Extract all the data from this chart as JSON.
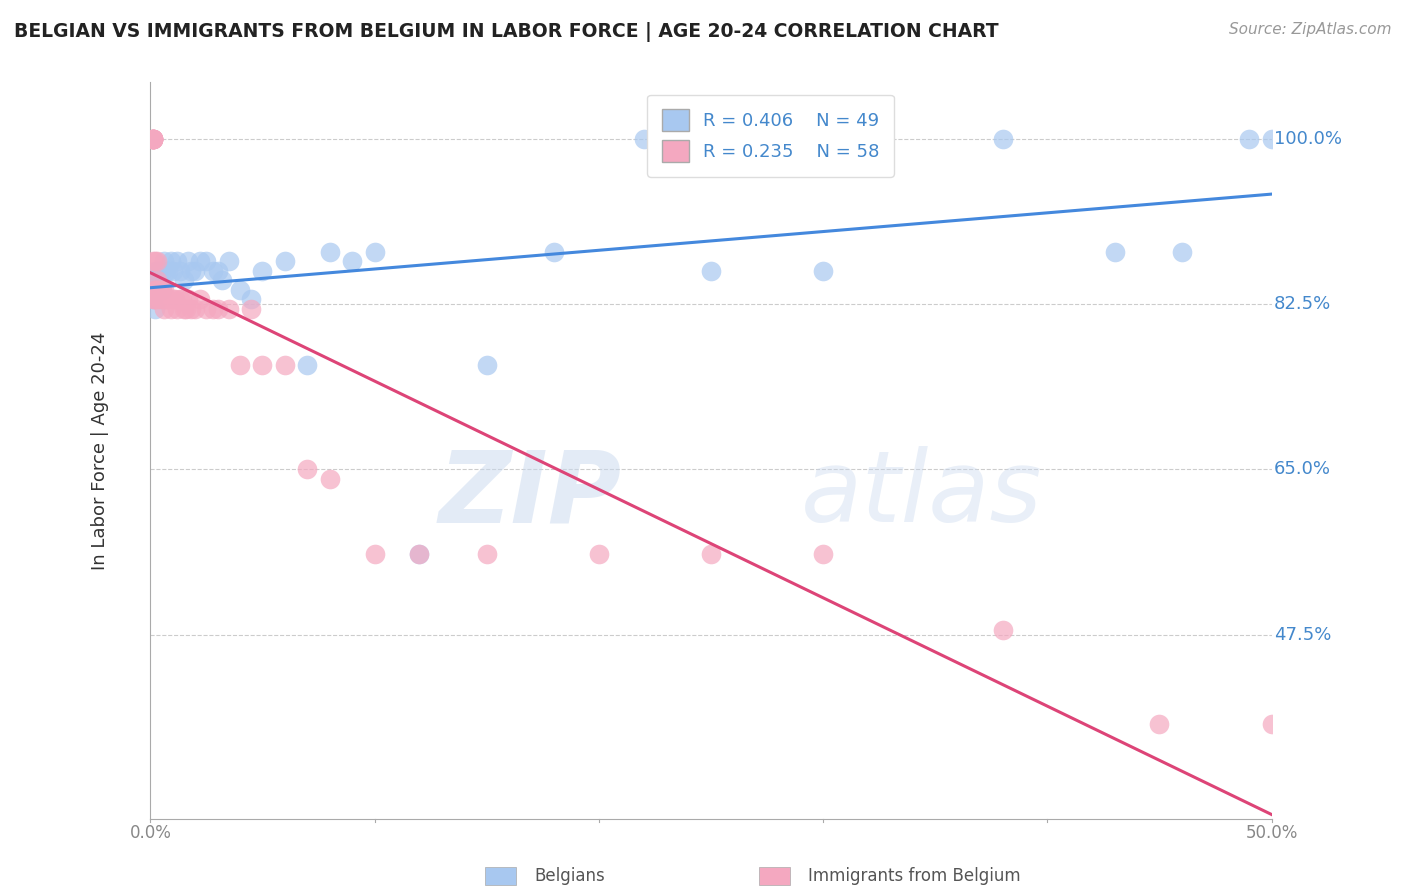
{
  "title": "BELGIAN VS IMMIGRANTS FROM BELGIUM IN LABOR FORCE | AGE 20-24 CORRELATION CHART",
  "source": "Source: ZipAtlas.com",
  "ylabel": "In Labor Force | Age 20-24",
  "xlim": [
    0.0,
    0.5
  ],
  "ylim": [
    0.28,
    1.06
  ],
  "yticks": [
    0.475,
    0.65,
    0.825,
    1.0
  ],
  "yticklabels": [
    "47.5%",
    "65.0%",
    "82.5%",
    "100.0%"
  ],
  "blue_color": "#A8C8F0",
  "pink_color": "#F4A8C0",
  "blue_line_color": "#4488DD",
  "pink_line_color": "#DD4477",
  "grid_color": "#CCCCCC",
  "text_color": "#4488CC",
  "title_color": "#222222",
  "watermark_zip": "ZIP",
  "watermark_atlas": "atlas",
  "legend_blue_R": "R = 0.406",
  "legend_blue_N": "N = 49",
  "legend_pink_R": "R = 0.235",
  "legend_pink_N": "N = 58",
  "belgians_x": [
    0.001,
    0.001,
    0.002,
    0.002,
    0.002,
    0.002,
    0.003,
    0.003,
    0.003,
    0.004,
    0.004,
    0.005,
    0.005,
    0.006,
    0.007,
    0.008,
    0.009,
    0.01,
    0.012,
    0.013,
    0.015,
    0.017,
    0.018,
    0.02,
    0.022,
    0.025,
    0.028,
    0.03,
    0.032,
    0.035,
    0.04,
    0.045,
    0.05,
    0.06,
    0.07,
    0.08,
    0.09,
    0.1,
    0.12,
    0.15,
    0.18,
    0.22,
    0.25,
    0.3,
    0.38,
    0.43,
    0.46,
    0.49,
    0.5
  ],
  "belgians_y": [
    0.83,
    0.84,
    0.82,
    0.84,
    0.85,
    0.86,
    0.84,
    0.85,
    0.86,
    0.84,
    0.86,
    0.84,
    0.86,
    0.87,
    0.86,
    0.86,
    0.87,
    0.86,
    0.87,
    0.86,
    0.85,
    0.87,
    0.86,
    0.86,
    0.87,
    0.87,
    0.86,
    0.86,
    0.85,
    0.87,
    0.84,
    0.83,
    0.86,
    0.87,
    0.76,
    0.88,
    0.87,
    0.88,
    0.56,
    0.76,
    0.88,
    1.0,
    0.86,
    0.86,
    1.0,
    0.88,
    0.88,
    1.0,
    1.0
  ],
  "immigrants_x": [
    0.001,
    0.001,
    0.001,
    0.001,
    0.001,
    0.001,
    0.001,
    0.001,
    0.001,
    0.001,
    0.002,
    0.002,
    0.002,
    0.002,
    0.002,
    0.003,
    0.003,
    0.003,
    0.004,
    0.004,
    0.005,
    0.005,
    0.006,
    0.006,
    0.007,
    0.007,
    0.008,
    0.009,
    0.01,
    0.011,
    0.012,
    0.013,
    0.014,
    0.015,
    0.016,
    0.017,
    0.018,
    0.02,
    0.022,
    0.025,
    0.028,
    0.03,
    0.035,
    0.04,
    0.045,
    0.05,
    0.06,
    0.07,
    0.08,
    0.1,
    0.12,
    0.15,
    0.2,
    0.25,
    0.3,
    0.38,
    0.45,
    0.5
  ],
  "immigrants_y": [
    1.0,
    1.0,
    1.0,
    1.0,
    1.0,
    1.0,
    1.0,
    1.0,
    0.87,
    0.83,
    0.87,
    0.84,
    0.83,
    0.84,
    0.83,
    0.87,
    0.85,
    0.84,
    0.83,
    0.84,
    0.83,
    0.84,
    0.82,
    0.84,
    0.83,
    0.83,
    0.83,
    0.82,
    0.83,
    0.83,
    0.82,
    0.83,
    0.83,
    0.82,
    0.82,
    0.83,
    0.82,
    0.82,
    0.83,
    0.82,
    0.82,
    0.82,
    0.82,
    0.76,
    0.82,
    0.76,
    0.76,
    0.65,
    0.64,
    0.56,
    0.56,
    0.56,
    0.56,
    0.56,
    0.56,
    0.48,
    0.38,
    0.38
  ]
}
